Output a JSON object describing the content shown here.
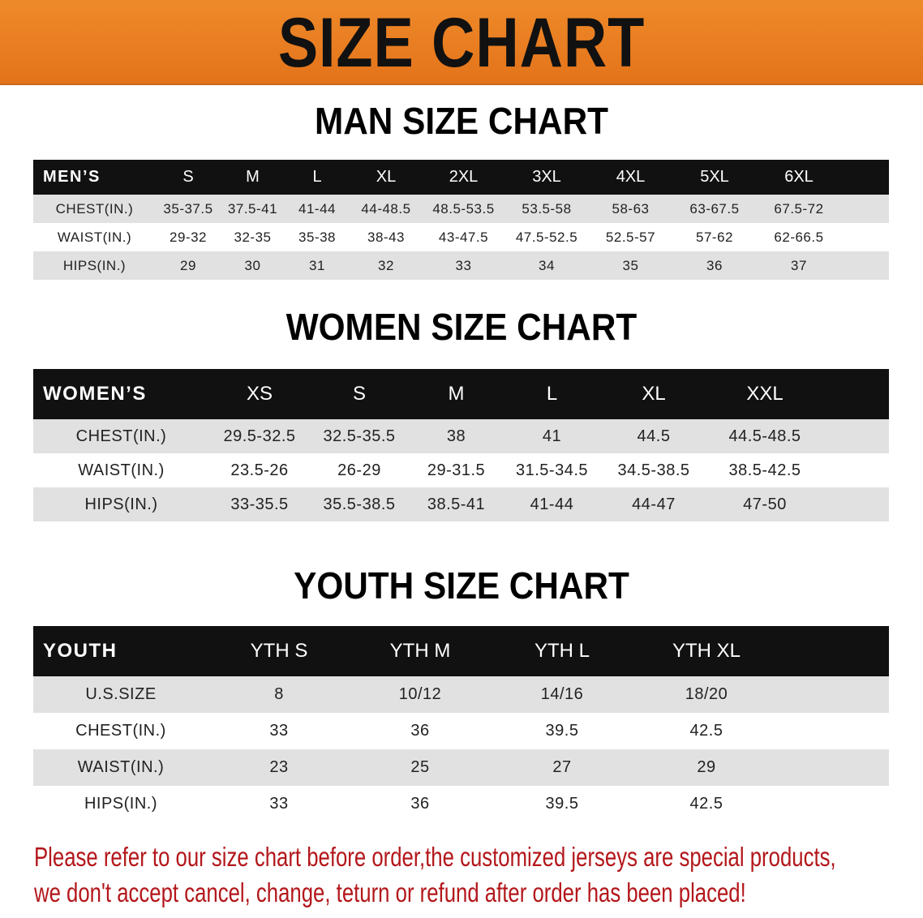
{
  "banner": {
    "title": "SIZE CHART",
    "color": "#e8781c"
  },
  "men": {
    "title": "MAN SIZE CHART",
    "header": [
      "MEN’S",
      "S",
      "M",
      "L",
      "XL",
      "2XL",
      "3XL",
      "4XL",
      "5XL",
      "6XL"
    ],
    "rows": [
      [
        "CHEST(IN.)",
        "35-37.5",
        "37.5-41",
        "41-44",
        "44-48.5",
        "48.5-53.5",
        "53.5-58",
        "58-63",
        "63-67.5",
        "67.5-72"
      ],
      [
        "WAIST(IN.)",
        "29-32",
        "32-35",
        "35-38",
        "38-43",
        "43-47.5",
        "47.5-52.5",
        "52.5-57",
        "57-62",
        "62-66.5"
      ],
      [
        "HIPS(IN.)",
        "29",
        "30",
        "31",
        "32",
        "33",
        "34",
        "35",
        "36",
        "37"
      ]
    ]
  },
  "women": {
    "title": "WOMEN SIZE CHART",
    "header": [
      "WOMEN’S",
      "XS",
      "S",
      "M",
      "L",
      "XL",
      "XXL"
    ],
    "rows": [
      [
        "CHEST(IN.)",
        "29.5-32.5",
        "32.5-35.5",
        "38",
        "41",
        "44.5",
        "44.5-48.5"
      ],
      [
        "WAIST(IN.)",
        "23.5-26",
        "26-29",
        "29-31.5",
        "31.5-34.5",
        "34.5-38.5",
        "38.5-42.5"
      ],
      [
        "HIPS(IN.)",
        "33-35.5",
        "35.5-38.5",
        "38.5-41",
        "41-44",
        "44-47",
        "47-50"
      ]
    ]
  },
  "youth": {
    "title": "YOUTH SIZE CHART",
    "header": [
      "YOUTH",
      "YTH S",
      "YTH M",
      "YTH L",
      "YTH XL"
    ],
    "rows": [
      [
        "U.S.SIZE",
        "8",
        "10/12",
        "14/16",
        "18/20"
      ],
      [
        "CHEST(IN.)",
        "33",
        "36",
        "39.5",
        "42.5"
      ],
      [
        "WAIST(IN.)",
        "23",
        "25",
        "27",
        "29"
      ],
      [
        "HIPS(IN.)",
        "33",
        "36",
        "39.5",
        "42.5"
      ]
    ]
  },
  "notice": {
    "line1": "Please refer to our size chart before order,the customized jerseys are special products,",
    "line2": "we don't accept cancel, change, teturn or refund after order has been placed!",
    "color": "#b3171b"
  }
}
